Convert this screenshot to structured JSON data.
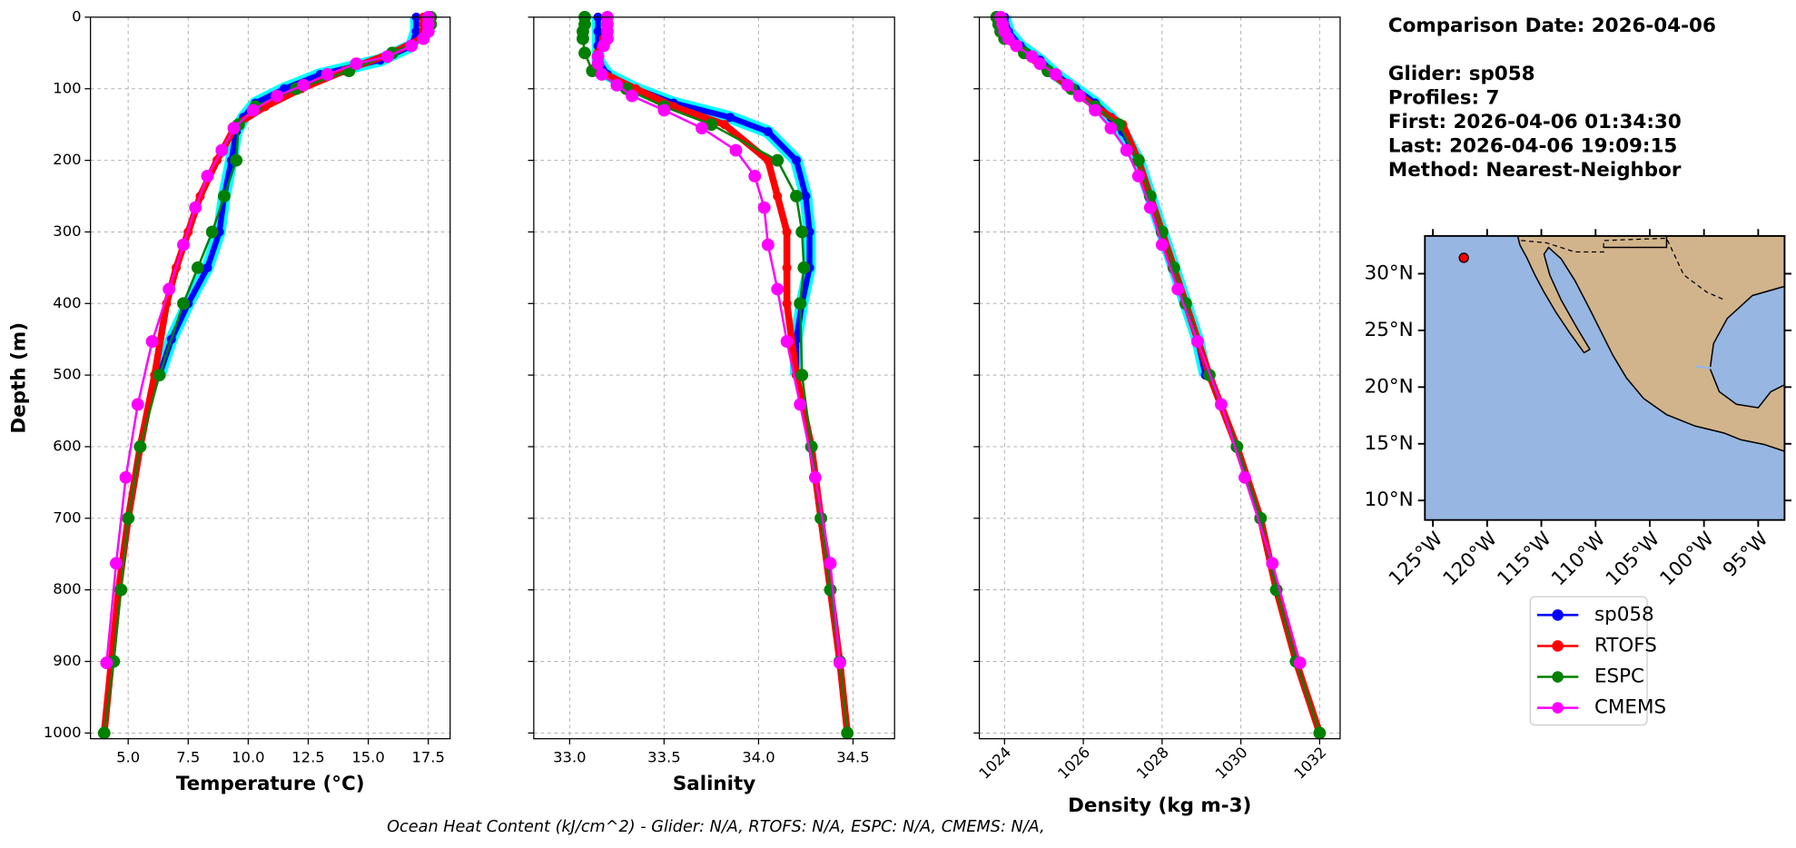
{
  "chart_data": [
    {
      "type": "line",
      "xlabel": "Temperature (°C)",
      "ylabel": "Depth (m)",
      "xlim": [
        3.43,
        18.41
      ],
      "xticks": [
        {
          "value": 5,
          "label": "5.0"
        },
        7.5,
        {
          "value": 10,
          "label": "10.0"
        },
        12.5,
        {
          "value": 15,
          "label": "15.0"
        },
        17.5
      ],
      "ylim": [
        0,
        1008
      ],
      "y_inverted": true,
      "yticks": [
        0,
        100,
        200,
        300,
        400,
        500,
        600,
        700,
        800,
        900,
        1000
      ],
      "grid": true,
      "series": [
        {
          "name": "sp058",
          "color": "#0000ff",
          "halo": "#00ffff",
          "linewidth": 5,
          "marker": 4,
          "depth": [
            0,
            20,
            40,
            60,
            80,
            100,
            120,
            140,
            160,
            200,
            250,
            300,
            350,
            400,
            450,
            500
          ],
          "values": [
            17.0,
            17.0,
            16.8,
            15.5,
            13.0,
            11.5,
            10.3,
            9.8,
            9.5,
            9.3,
            9.0,
            8.8,
            8.3,
            7.5,
            6.8,
            6.3
          ]
        },
        {
          "name": "RTOFS",
          "color": "#ff0000",
          "linewidth": 6,
          "marker": 4,
          "depth": [
            0,
            10,
            20,
            30,
            50,
            75,
            100,
            125,
            150,
            200,
            250,
            300,
            350,
            400,
            500,
            600,
            700,
            800,
            900,
            1000
          ],
          "values": [
            17.3,
            17.3,
            17.3,
            17.2,
            16.0,
            14.0,
            12.2,
            10.7,
            9.5,
            8.7,
            8.0,
            7.5,
            7.0,
            6.6,
            6.1,
            5.5,
            5.0,
            4.6,
            4.3,
            4.0
          ]
        },
        {
          "name": "ESPC",
          "color": "#008000",
          "linewidth": 2,
          "marker": 5.5,
          "depth": [
            0,
            10,
            20,
            30,
            50,
            75,
            100,
            125,
            150,
            200,
            250,
            300,
            350,
            400,
            500,
            600,
            700,
            800,
            900,
            1000
          ],
          "values": [
            17.6,
            17.6,
            17.5,
            17.3,
            16.0,
            14.2,
            12.0,
            10.3,
            9.6,
            9.5,
            9.0,
            8.5,
            7.9,
            7.3,
            6.3,
            5.5,
            5.0,
            4.7,
            4.4,
            4.0
          ]
        },
        {
          "name": "CMEMS",
          "color": "#ff00ff",
          "linewidth": 2,
          "marker": 5.5,
          "depth": [
            0,
            10,
            20,
            30,
            40,
            55,
            65,
            80,
            95,
            110,
            130,
            155,
            186,
            222,
            266,
            318,
            380,
            453,
            541,
            643,
            763,
            902
          ],
          "values": [
            17.5,
            17.5,
            17.5,
            17.3,
            16.8,
            15.8,
            14.5,
            13.3,
            12.3,
            11.2,
            10.2,
            9.4,
            8.9,
            8.3,
            7.8,
            7.3,
            6.7,
            6.0,
            5.4,
            4.9,
            4.5,
            4.1
          ]
        }
      ]
    },
    {
      "type": "line",
      "xlabel": "Salinity",
      "xlim": [
        32.81,
        34.72
      ],
      "xticks": [
        {
          "value": 33,
          "label": "33.0"
        },
        33.5,
        {
          "value": 34,
          "label": "34.0"
        },
        34.5
      ],
      "ylim": [
        0,
        1008
      ],
      "y_inverted": true,
      "yticks": [
        0,
        100,
        200,
        300,
        400,
        500,
        600,
        700,
        800,
        900,
        1000
      ],
      "grid": true,
      "series": [
        {
          "color": "#0000ff",
          "halo": "#00ffff",
          "linewidth": 5,
          "marker": 4,
          "depth": [
            0,
            20,
            40,
            60,
            80,
            100,
            120,
            140,
            160,
            200,
            250,
            300,
            350,
            400,
            450,
            500
          ],
          "values": [
            33.15,
            33.15,
            33.15,
            33.15,
            33.2,
            33.35,
            33.55,
            33.85,
            34.05,
            34.2,
            34.25,
            34.27,
            34.27,
            34.23,
            34.2,
            34.2
          ]
        },
        {
          "color": "#ff0000",
          "linewidth": 6,
          "marker": 4,
          "depth": [
            0,
            10,
            20,
            30,
            50,
            75,
            100,
            125,
            150,
            200,
            250,
            300,
            350,
            400,
            500,
            600,
            700,
            800,
            900,
            1000
          ],
          "values": [
            33.2,
            33.2,
            33.19,
            33.18,
            33.15,
            33.15,
            33.35,
            33.55,
            33.82,
            34.05,
            34.1,
            34.15,
            34.15,
            34.15,
            34.2,
            34.28,
            34.33,
            34.38,
            34.43,
            34.47
          ]
        },
        {
          "color": "#008000",
          "linewidth": 2,
          "marker": 5.5,
          "depth": [
            0,
            10,
            20,
            30,
            50,
            75,
            100,
            125,
            150,
            200,
            250,
            300,
            350,
            400,
            500,
            600,
            700,
            800,
            900,
            1000
          ],
          "values": [
            33.08,
            33.08,
            33.07,
            33.07,
            33.08,
            33.12,
            33.3,
            33.5,
            33.75,
            34.1,
            34.2,
            34.23,
            34.24,
            34.22,
            34.23,
            34.28,
            34.33,
            34.38,
            34.43,
            34.47
          ]
        },
        {
          "color": "#ff00ff",
          "linewidth": 2,
          "marker": 5.5,
          "depth": [
            0,
            10,
            20,
            30,
            40,
            55,
            65,
            80,
            95,
            110,
            130,
            155,
            186,
            222,
            266,
            318,
            380,
            453,
            541,
            643,
            763,
            902
          ],
          "values": [
            33.2,
            33.2,
            33.2,
            33.2,
            33.18,
            33.15,
            33.15,
            33.17,
            33.25,
            33.33,
            33.5,
            33.7,
            33.88,
            33.98,
            34.03,
            34.05,
            34.1,
            34.15,
            34.22,
            34.3,
            34.38,
            34.43
          ]
        }
      ]
    },
    {
      "type": "line",
      "xlabel": "Density (kg m-3)",
      "xlim": [
        1023.36,
        1032.52
      ],
      "xticks": [
        1024,
        1026,
        1028,
        1030,
        1032
      ],
      "rotate_xticks": true,
      "ylim": [
        0,
        1008
      ],
      "y_inverted": true,
      "yticks": [
        0,
        100,
        200,
        300,
        400,
        500,
        600,
        700,
        800,
        900,
        1000
      ],
      "grid": true,
      "series": [
        {
          "color": "#0000ff",
          "halo": "#00ffff",
          "linewidth": 5,
          "marker": 4,
          "depth": [
            0,
            20,
            40,
            60,
            80,
            100,
            120,
            140,
            160,
            200,
            250,
            300,
            350,
            400,
            450,
            500
          ],
          "values": [
            1024.0,
            1024.1,
            1024.4,
            1024.9,
            1025.3,
            1025.8,
            1026.3,
            1026.7,
            1027.0,
            1027.4,
            1027.7,
            1028.0,
            1028.3,
            1028.6,
            1028.9,
            1029.1
          ]
        },
        {
          "color": "#ff0000",
          "linewidth": 6,
          "marker": 4,
          "depth": [
            0,
            10,
            20,
            30,
            50,
            75,
            100,
            125,
            150,
            200,
            250,
            300,
            350,
            400,
            500,
            600,
            700,
            800,
            900,
            1000
          ],
          "values": [
            1023.85,
            1023.9,
            1023.95,
            1024.05,
            1024.5,
            1025.1,
            1025.7,
            1026.3,
            1027.0,
            1027.4,
            1027.7,
            1028.0,
            1028.3,
            1028.6,
            1029.2,
            1029.9,
            1030.5,
            1030.9,
            1031.4,
            1032.0
          ]
        },
        {
          "color": "#008000",
          "linewidth": 2,
          "marker": 5.5,
          "depth": [
            0,
            10,
            20,
            30,
            50,
            75,
            100,
            125,
            150,
            200,
            250,
            300,
            350,
            400,
            500,
            600,
            700,
            800,
            900,
            1000
          ],
          "values": [
            1023.8,
            1023.85,
            1023.9,
            1024.0,
            1024.5,
            1025.1,
            1025.7,
            1026.3,
            1026.9,
            1027.4,
            1027.7,
            1028.0,
            1028.3,
            1028.6,
            1029.2,
            1029.9,
            1030.5,
            1030.9,
            1031.4,
            1032.0
          ]
        },
        {
          "color": "#ff00ff",
          "linewidth": 2,
          "marker": 5.5,
          "depth": [
            0,
            10,
            20,
            30,
            40,
            55,
            65,
            80,
            95,
            110,
            130,
            155,
            186,
            222,
            266,
            318,
            380,
            453,
            541,
            643,
            763,
            902
          ],
          "values": [
            1023.9,
            1023.95,
            1024.0,
            1024.1,
            1024.3,
            1024.7,
            1024.9,
            1025.3,
            1025.6,
            1025.9,
            1026.3,
            1026.7,
            1027.1,
            1027.4,
            1027.7,
            1028.0,
            1028.4,
            1028.9,
            1029.5,
            1030.1,
            1030.8,
            1031.5
          ]
        }
      ]
    }
  ],
  "info": [
    "Comparison Date: 2026-04-06",
    "Glider: sp058",
    "Profiles: 7",
    "First: 2026-04-06 01:34:30",
    "Last: 2026-04-06 19:09:15",
    "Method: Nearest-Neighbor"
  ],
  "map": {
    "lonlim": [
      -125.74,
      -92.57
    ],
    "latlim": [
      8.28,
      33.33
    ],
    "lonticks": [
      {
        "value": -125,
        "label": "125°W"
      },
      {
        "value": -120,
        "label": "120°W"
      },
      {
        "value": -115,
        "label": "115°W"
      },
      {
        "value": -110,
        "label": "110°W"
      },
      {
        "value": -105,
        "label": "105°W"
      },
      {
        "value": -100,
        "label": "100°W"
      },
      {
        "value": -95,
        "label": "95°W"
      }
    ],
    "latticks": [
      {
        "value": 10,
        "label": "10°N"
      },
      {
        "value": 15,
        "label": "15°N"
      },
      {
        "value": 20,
        "label": "20°N"
      },
      {
        "value": 25,
        "label": "25°N"
      },
      {
        "value": 30,
        "label": "30°N"
      }
    ],
    "glider_position": {
      "lon": -122.15,
      "lat": 31.4
    },
    "glider_color": "#ff0000"
  },
  "footer": "Ocean Heat Content (kJ/cm^2) - Glider: N/A,  RTOFS: N/A,  ESPC: N/A,  CMEMS: N/A,"
}
